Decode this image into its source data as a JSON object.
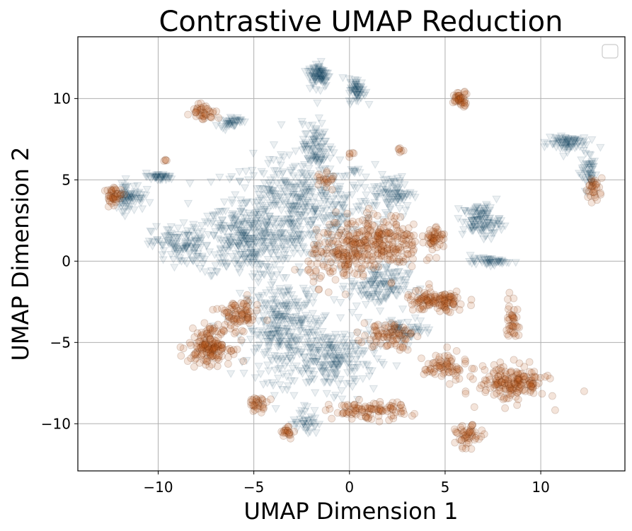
{
  "chart_data": {
    "type": "scatter",
    "title": "Contrastive UMAP Reduction",
    "xlabel": "UMAP Dimension 1",
    "ylabel": "UMAP Dimension 2",
    "xlim": [
      -14.2,
      14.4
    ],
    "ylim": [
      -12.9,
      13.8
    ],
    "xticks": [
      -10,
      -5,
      0,
      5,
      10
    ],
    "yticks": [
      -10,
      -5,
      0,
      5,
      10
    ],
    "xtick_labels": [
      "−10",
      "−5",
      "0",
      "5",
      "10"
    ],
    "ytick_labels": [
      "−10",
      "−5",
      "0",
      "5",
      "10"
    ],
    "grid": true,
    "legend": {
      "placement": "top-right",
      "entries": []
    },
    "series": [
      {
        "marker": "triangle",
        "color": "#0b3a5c",
        "clusters": [
          {
            "x": -2.7,
            "y": 3.2,
            "sx": 3.6,
            "sy": 2.9,
            "n": 520
          },
          {
            "x": -5.5,
            "y": 1.2,
            "sx": 2.2,
            "sy": 2.0,
            "n": 260
          },
          {
            "x": -8.8,
            "y": 1.0,
            "sx": 1.4,
            "sy": 1.1,
            "n": 120
          },
          {
            "x": -3.4,
            "y": -4.2,
            "sx": 1.8,
            "sy": 2.8,
            "n": 320
          },
          {
            "x": -0.8,
            "y": -6.0,
            "sx": 2.0,
            "sy": 1.8,
            "n": 220
          },
          {
            "x": 1.5,
            "y": -1.5,
            "sx": 1.4,
            "sy": 1.2,
            "n": 140
          },
          {
            "x": 2.2,
            "y": 4.2,
            "sx": 1.0,
            "sy": 1.0,
            "n": 90
          },
          {
            "x": -1.6,
            "y": 11.5,
            "sx": 0.5,
            "sy": 0.7,
            "n": 90
          },
          {
            "x": 0.4,
            "y": 10.5,
            "sx": 0.4,
            "sy": 0.7,
            "n": 60
          },
          {
            "x": -11.5,
            "y": 4.0,
            "sx": 0.7,
            "sy": 0.8,
            "n": 80
          },
          {
            "x": -10.0,
            "y": 5.2,
            "sx": 0.8,
            "sy": 0.2,
            "n": 40
          },
          {
            "x": -6.2,
            "y": 8.6,
            "sx": 0.5,
            "sy": 0.3,
            "n": 40
          },
          {
            "x": 6.9,
            "y": 2.5,
            "sx": 0.9,
            "sy": 0.9,
            "n": 120
          },
          {
            "x": 7.3,
            "y": 0.0,
            "sx": 0.9,
            "sy": 0.2,
            "n": 50
          },
          {
            "x": 11.3,
            "y": 7.3,
            "sx": 1.0,
            "sy": 0.5,
            "n": 80
          },
          {
            "x": 12.5,
            "y": 5.5,
            "sx": 0.4,
            "sy": 1.0,
            "n": 50
          },
          {
            "x": -1.8,
            "y": 7.0,
            "sx": 0.6,
            "sy": 1.4,
            "n": 90
          },
          {
            "x": -2.3,
            "y": -9.8,
            "sx": 0.6,
            "sy": 0.8,
            "n": 40
          },
          {
            "x": 3.0,
            "y": -4.2,
            "sx": 1.2,
            "sy": 0.6,
            "n": 60
          }
        ]
      },
      {
        "marker": "circle",
        "color": "#b85a17",
        "clusters": [
          {
            "x": 1.5,
            "y": 1.2,
            "sx": 2.0,
            "sy": 1.5,
            "n": 260
          },
          {
            "x": -0.5,
            "y": 0.2,
            "sx": 1.5,
            "sy": 1.5,
            "n": 120
          },
          {
            "x": 4.5,
            "y": -2.5,
            "sx": 1.5,
            "sy": 0.6,
            "n": 120
          },
          {
            "x": -7.3,
            "y": -5.2,
            "sx": 1.0,
            "sy": 1.0,
            "n": 160
          },
          {
            "x": -5.8,
            "y": -3.3,
            "sx": 1.0,
            "sy": 0.8,
            "n": 80
          },
          {
            "x": 8.5,
            "y": -7.5,
            "sx": 1.6,
            "sy": 1.0,
            "n": 180
          },
          {
            "x": 5.0,
            "y": -6.5,
            "sx": 1.0,
            "sy": 0.8,
            "n": 70
          },
          {
            "x": 1.0,
            "y": -9.2,
            "sx": 1.8,
            "sy": 0.5,
            "n": 100
          },
          {
            "x": 6.2,
            "y": -10.8,
            "sx": 0.6,
            "sy": 0.6,
            "n": 50
          },
          {
            "x": 5.8,
            "y": 10.0,
            "sx": 0.4,
            "sy": 0.4,
            "n": 40
          },
          {
            "x": -7.6,
            "y": 9.2,
            "sx": 0.6,
            "sy": 0.5,
            "n": 40
          },
          {
            "x": -12.3,
            "y": 4.0,
            "sx": 0.4,
            "sy": 0.5,
            "n": 40
          },
          {
            "x": 12.8,
            "y": 4.5,
            "sx": 0.4,
            "sy": 0.6,
            "n": 30
          },
          {
            "x": -4.8,
            "y": -8.8,
            "sx": 0.5,
            "sy": 0.4,
            "n": 30
          },
          {
            "x": -3.2,
            "y": -10.5,
            "sx": 0.3,
            "sy": 0.3,
            "n": 20
          },
          {
            "x": 8.5,
            "y": -3.5,
            "sx": 0.3,
            "sy": 1.2,
            "n": 40
          },
          {
            "x": 4.5,
            "y": 1.5,
            "sx": 0.4,
            "sy": 0.8,
            "n": 40
          },
          {
            "x": -1.2,
            "y": 5.0,
            "sx": 0.5,
            "sy": 0.5,
            "n": 20
          },
          {
            "x": 2.6,
            "y": 6.8,
            "sx": 0.2,
            "sy": 0.2,
            "n": 6
          },
          {
            "x": 0.1,
            "y": 6.5,
            "sx": 0.15,
            "sy": 0.15,
            "n": 5
          },
          {
            "x": -9.6,
            "y": 6.2,
            "sx": 0.15,
            "sy": 0.15,
            "n": 4
          },
          {
            "x": 2.0,
            "y": -4.5,
            "sx": 1.2,
            "sy": 0.8,
            "n": 80
          }
        ]
      }
    ]
  }
}
